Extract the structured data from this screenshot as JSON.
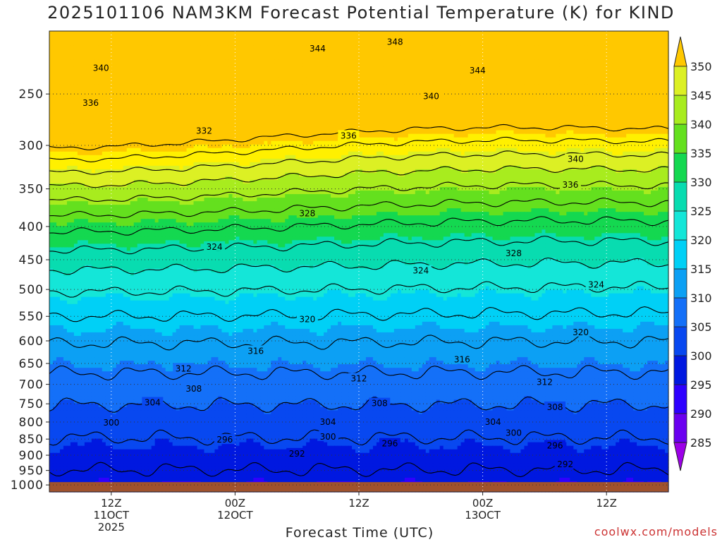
{
  "chart_data": {
    "type": "time-height contour",
    "title": "2025101106 NAM3KM Forecast Potential Temperature (K) for KIND",
    "xlabel": "Forecast Time (UTC)",
    "ylabel": "",
    "credit": "coolwx.com/models",
    "y_axis": {
      "scale": "log-pressure",
      "range": [
        1025,
        200
      ],
      "ticks": [
        250,
        300,
        350,
        400,
        450,
        500,
        550,
        600,
        650,
        700,
        750,
        800,
        850,
        900,
        950,
        1000
      ]
    },
    "x_axis": {
      "units": "forecast hours from 2025101106",
      "range": [
        0,
        60
      ],
      "ticks": [
        {
          "x": 6,
          "labels": [
            "12Z",
            "11OCT",
            "2025"
          ]
        },
        {
          "x": 18,
          "labels": [
            "00Z",
            "12OCT"
          ]
        },
        {
          "x": 30,
          "labels": [
            "12Z"
          ]
        },
        {
          "x": 42,
          "labels": [
            "00Z",
            "13OCT"
          ]
        },
        {
          "x": 54,
          "labels": [
            "12Z"
          ]
        }
      ]
    },
    "colorbar": {
      "ticks": [
        285,
        290,
        295,
        300,
        305,
        310,
        315,
        320,
        325,
        330,
        335,
        340,
        345,
        350
      ],
      "colors": [
        "#9c00e8",
        "#6a00f0",
        "#2e00ff",
        "#0018e0",
        "#0848f0",
        "#1470f8",
        "#0ca0f4",
        "#00d0f6",
        "#14e6d8",
        "#08dcb0",
        "#14d850",
        "#64e01e",
        "#a8ec1e",
        "#dcf024",
        "#fff000",
        "#ffc800"
      ]
    },
    "ground_color": "#a0522d",
    "grid": true,
    "contour_interval": 4,
    "contour_labels": [
      {
        "value": "348",
        "x": 33.5,
        "p": 208
      },
      {
        "value": "344",
        "x": 26.0,
        "p": 213
      },
      {
        "value": "344",
        "x": 41.5,
        "p": 230
      },
      {
        "value": "340",
        "x": 5.0,
        "p": 228
      },
      {
        "value": "340",
        "x": 37.0,
        "p": 252
      },
      {
        "value": "340",
        "x": 51.0,
        "p": 315
      },
      {
        "value": "336",
        "x": 4.0,
        "p": 258
      },
      {
        "value": "336",
        "x": 29.0,
        "p": 290
      },
      {
        "value": "336",
        "x": 50.5,
        "p": 345
      },
      {
        "value": "332",
        "x": 15.0,
        "p": 285
      },
      {
        "value": "328",
        "x": 25.0,
        "p": 382
      },
      {
        "value": "328",
        "x": 45.0,
        "p": 440
      },
      {
        "value": "324",
        "x": 16.0,
        "p": 430
      },
      {
        "value": "324",
        "x": 36.0,
        "p": 468
      },
      {
        "value": "324",
        "x": 53.0,
        "p": 492
      },
      {
        "value": "320",
        "x": 25.0,
        "p": 556
      },
      {
        "value": "320",
        "x": 51.5,
        "p": 582
      },
      {
        "value": "316",
        "x": 20.0,
        "p": 622
      },
      {
        "value": "316",
        "x": 40.0,
        "p": 641
      },
      {
        "value": "312",
        "x": 13.0,
        "p": 662
      },
      {
        "value": "312",
        "x": 30.0,
        "p": 686
      },
      {
        "value": "312",
        "x": 48.0,
        "p": 695
      },
      {
        "value": "308",
        "x": 14.0,
        "p": 711
      },
      {
        "value": "308",
        "x": 32.0,
        "p": 749
      },
      {
        "value": "308",
        "x": 49.0,
        "p": 759
      },
      {
        "value": "304",
        "x": 10.0,
        "p": 747
      },
      {
        "value": "304",
        "x": 27.0,
        "p": 800
      },
      {
        "value": "304",
        "x": 43.0,
        "p": 800
      },
      {
        "value": "300",
        "x": 6.0,
        "p": 802
      },
      {
        "value": "300",
        "x": 27.0,
        "p": 843
      },
      {
        "value": "300",
        "x": 45.0,
        "p": 832
      },
      {
        "value": "296",
        "x": 17.0,
        "p": 852
      },
      {
        "value": "296",
        "x": 33.0,
        "p": 864
      },
      {
        "value": "296",
        "x": 49.0,
        "p": 870
      },
      {
        "value": "292",
        "x": 24.0,
        "p": 895
      },
      {
        "value": "292",
        "x": 50.0,
        "p": 930
      }
    ]
  }
}
